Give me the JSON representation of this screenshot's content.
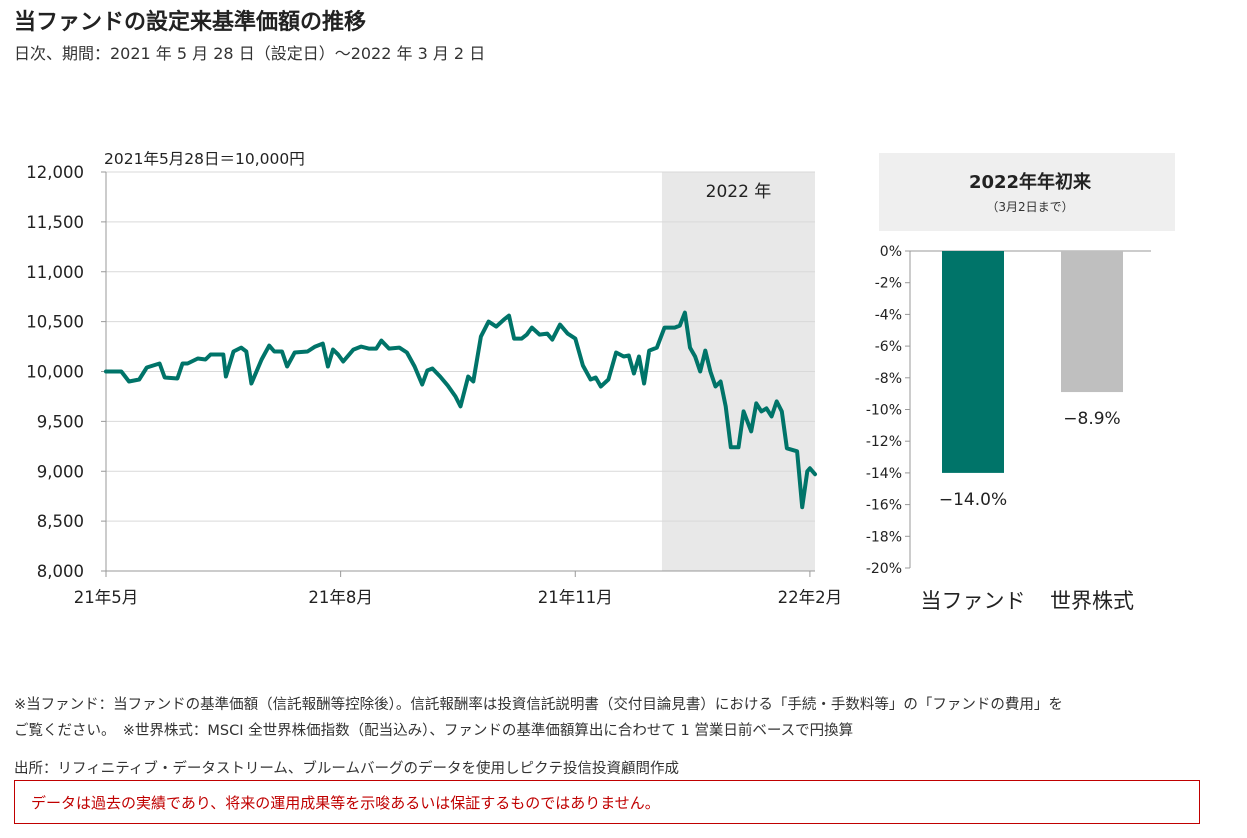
{
  "title": "当ファンドの設定来基準価額の推移",
  "subtitle": "日次、期間：2021 年 5 月 28 日（設定日）〜2022 年 3 月 2 日",
  "colors": {
    "fund": "#007469",
    "world": "#bfbfbf",
    "shade": "#e8e8e8",
    "disclaimer": "#c00000"
  },
  "chart_data": [
    {
      "type": "line",
      "title": "",
      "annotation": "2021年5月28日＝10,000円",
      "region_label": "2022 年",
      "ylim": [
        8000,
        12000
      ],
      "yticks": [
        "12,000",
        "11,500",
        "11,000",
        "10,500",
        "10,000",
        "9,500",
        "9,000",
        "8,500",
        "8,000"
      ],
      "xlim": [
        "2021-05-28",
        "2022-03-02"
      ],
      "xticks": [
        {
          "date": "2021-05-28",
          "label": "21年5月"
        },
        {
          "date": "2021-08-28",
          "label": "21年8月"
        },
        {
          "date": "2021-11-28",
          "label": "21年11月"
        },
        {
          "date": "2022-02-28",
          "label": "22年2月"
        }
      ],
      "grid": true,
      "series": [
        {
          "points": [
            [
              "2021-05-28",
              10000
            ],
            [
              "2021-06-03",
              10000
            ],
            [
              "2021-06-06",
              9900
            ],
            [
              "2021-06-10",
              9920
            ],
            [
              "2021-06-13",
              10040
            ],
            [
              "2021-06-18",
              10080
            ],
            [
              "2021-06-20",
              9940
            ],
            [
              "2021-06-25",
              9930
            ],
            [
              "2021-06-27",
              10080
            ],
            [
              "2021-06-29",
              10080
            ],
            [
              "2021-07-03",
              10130
            ],
            [
              "2021-07-06",
              10120
            ],
            [
              "2021-07-08",
              10170
            ],
            [
              "2021-07-13",
              10170
            ],
            [
              "2021-07-14",
              9950
            ],
            [
              "2021-07-17",
              10200
            ],
            [
              "2021-07-20",
              10240
            ],
            [
              "2021-07-22",
              10200
            ],
            [
              "2021-07-24",
              9880
            ],
            [
              "2021-07-28",
              10120
            ],
            [
              "2021-07-31",
              10260
            ],
            [
              "2021-08-02",
              10200
            ],
            [
              "2021-08-05",
              10200
            ],
            [
              "2021-08-07",
              10050
            ],
            [
              "2021-08-10",
              10190
            ],
            [
              "2021-08-15",
              10200
            ],
            [
              "2021-08-18",
              10250
            ],
            [
              "2021-08-21",
              10280
            ],
            [
              "2021-08-23",
              10050
            ],
            [
              "2021-08-25",
              10220
            ],
            [
              "2021-08-27",
              10170
            ],
            [
              "2021-08-29",
              10100
            ],
            [
              "2021-09-02",
              10220
            ],
            [
              "2021-09-05",
              10250
            ],
            [
              "2021-09-08",
              10230
            ],
            [
              "2021-09-11",
              10230
            ],
            [
              "2021-09-13",
              10310
            ],
            [
              "2021-09-16",
              10230
            ],
            [
              "2021-09-20",
              10240
            ],
            [
              "2021-09-23",
              10190
            ],
            [
              "2021-09-26",
              10050
            ],
            [
              "2021-09-29",
              9870
            ],
            [
              "2021-10-01",
              10010
            ],
            [
              "2021-10-03",
              10030
            ],
            [
              "2021-10-06",
              9950
            ],
            [
              "2021-10-09",
              9860
            ],
            [
              "2021-10-12",
              9750
            ],
            [
              "2021-10-14",
              9650
            ],
            [
              "2021-10-17",
              9950
            ],
            [
              "2021-10-19",
              9900
            ],
            [
              "2021-10-22",
              10350
            ],
            [
              "2021-10-25",
              10500
            ],
            [
              "2021-10-28",
              10450
            ],
            [
              "2021-10-31",
              10520
            ],
            [
              "2021-11-02",
              10560
            ],
            [
              "2021-11-04",
              10330
            ],
            [
              "2021-11-07",
              10330
            ],
            [
              "2021-11-09",
              10370
            ],
            [
              "2021-11-11",
              10440
            ],
            [
              "2021-11-14",
              10370
            ],
            [
              "2021-11-17",
              10380
            ],
            [
              "2021-11-19",
              10320
            ],
            [
              "2021-11-22",
              10470
            ],
            [
              "2021-11-25",
              10380
            ],
            [
              "2021-11-28",
              10330
            ],
            [
              "2021-12-01",
              10060
            ],
            [
              "2021-12-04",
              9920
            ],
            [
              "2021-12-06",
              9940
            ],
            [
              "2021-12-08",
              9850
            ],
            [
              "2021-12-11",
              9920
            ],
            [
              "2021-12-14",
              10190
            ],
            [
              "2021-12-17",
              10150
            ],
            [
              "2021-12-19",
              10160
            ],
            [
              "2021-12-21",
              9980
            ],
            [
              "2021-12-23",
              10150
            ],
            [
              "2021-12-25",
              9880
            ],
            [
              "2021-12-27",
              10210
            ],
            [
              "2021-12-30",
              10240
            ],
            [
              "2022-01-02",
              10440
            ],
            [
              "2022-01-06",
              10440
            ],
            [
              "2022-01-08",
              10460
            ],
            [
              "2022-01-10",
              10590
            ],
            [
              "2022-01-12",
              10240
            ],
            [
              "2022-01-14",
              10150
            ],
            [
              "2022-01-16",
              10000
            ],
            [
              "2022-01-18",
              10210
            ],
            [
              "2022-01-20",
              10000
            ],
            [
              "2022-01-22",
              9850
            ],
            [
              "2022-01-24",
              9900
            ],
            [
              "2022-01-26",
              9650
            ],
            [
              "2022-01-28",
              9240
            ],
            [
              "2022-01-31",
              9240
            ],
            [
              "2022-02-02",
              9600
            ],
            [
              "2022-02-05",
              9400
            ],
            [
              "2022-02-07",
              9680
            ],
            [
              "2022-02-09",
              9600
            ],
            [
              "2022-02-11",
              9630
            ],
            [
              "2022-02-13",
              9550
            ],
            [
              "2022-02-15",
              9700
            ],
            [
              "2022-02-17",
              9600
            ],
            [
              "2022-02-19",
              9230
            ],
            [
              "2022-02-23",
              9200
            ],
            [
              "2022-02-25",
              8640
            ],
            [
              "2022-02-27",
              9000
            ],
            [
              "2022-02-28",
              9030
            ],
            [
              "2022-03-02",
              8970
            ]
          ]
        }
      ],
      "shaded_region": [
        "2022-01-01",
        "2022-03-02"
      ]
    },
    {
      "type": "bar",
      "title": "2022年年初来",
      "subtitle": "（3月2日まで）",
      "categories": [
        "当ファンド",
        "世界株式"
      ],
      "values": [
        -14.0,
        -8.9
      ],
      "value_labels": [
        "−14.0%",
        "−8.9%"
      ],
      "ylim": [
        -20,
        0
      ],
      "yticks": [
        "0%",
        "-2%",
        "-4%",
        "-6%",
        "-8%",
        "-10%",
        "-12%",
        "-14%",
        "-16%",
        "-18%",
        "-20%"
      ]
    }
  ],
  "notes": {
    "line1": "※当ファンド：当ファンドの基準価額（信託報酬等控除後）。信託報酬率は投資信託説明書（交付目論見書）における「手続・手数料等」の「ファンドの費用」を",
    "line2": "ご覧ください。　※世界株式：MSCI 全世界株価指数（配当込み）、ファンドの基準価額算出に合わせて 1 営業日前ベースで円換算",
    "source": "出所：リフィニティブ・データストリーム、ブルームバーグのデータを使用しピクテ投信投資顧問作成",
    "disclaimer": "データは過去の実績であり、将来の運用成果等を示唆あるいは保証するものではありません。"
  }
}
